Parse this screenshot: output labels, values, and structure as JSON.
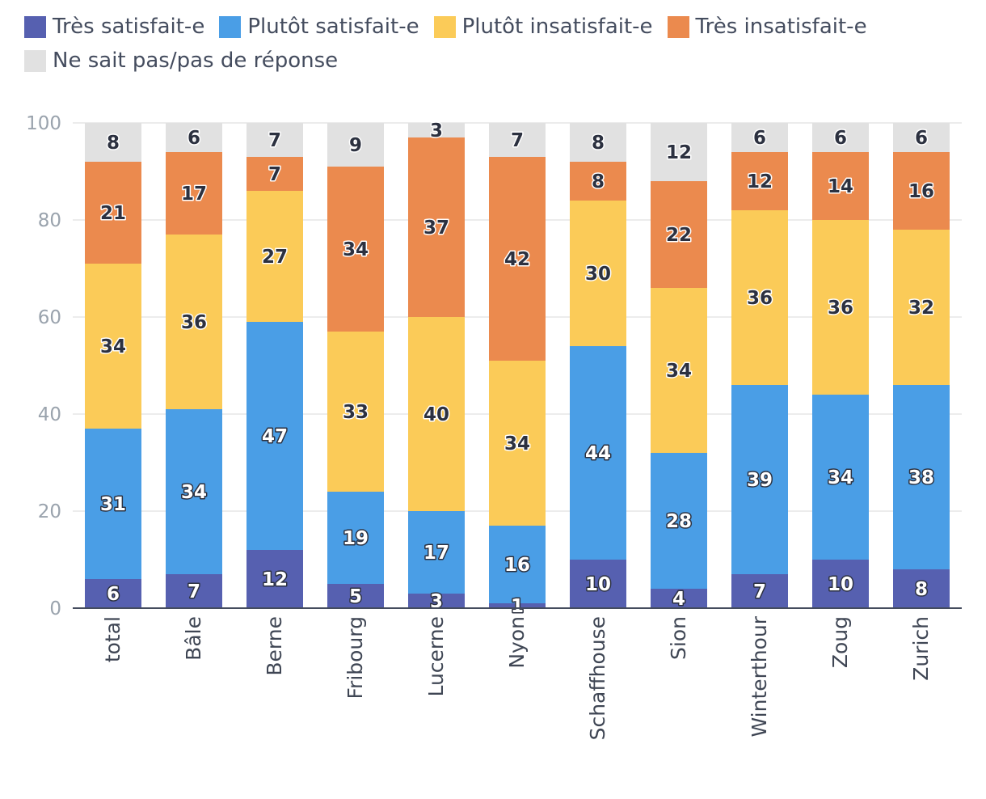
{
  "chart_data": {
    "type": "bar",
    "stacked": true,
    "categories": [
      "total",
      "Bâle",
      "Berne",
      "Fribourg",
      "Lucerne",
      "Nyon",
      "Schaffhouse",
      "Sion",
      "Winterthour",
      "Zoug",
      "Zurich"
    ],
    "series": [
      {
        "name": "Très satisfait-e",
        "color": "#5660b0",
        "values": [
          6,
          7,
          12,
          5,
          3,
          1,
          10,
          4,
          7,
          10,
          8
        ]
      },
      {
        "name": "Plutôt satisfait-e",
        "color": "#4a9ee6",
        "values": [
          31,
          34,
          47,
          19,
          17,
          16,
          44,
          28,
          39,
          34,
          38
        ]
      },
      {
        "name": "Plutôt insatisfait-e",
        "color": "#fbcb58",
        "values": [
          34,
          36,
          27,
          33,
          40,
          34,
          30,
          34,
          36,
          36,
          32
        ]
      },
      {
        "name": "Très insatisfait-e",
        "color": "#eb8a4e",
        "values": [
          21,
          17,
          7,
          34,
          37,
          42,
          8,
          22,
          12,
          14,
          16
        ]
      },
      {
        "name": "Ne sait pas/pas de réponse",
        "color": "#e1e1e1",
        "values": [
          8,
          6,
          7,
          9,
          3,
          7,
          8,
          12,
          6,
          6,
          6
        ]
      }
    ],
    "yticks": [
      0,
      20,
      40,
      60,
      80,
      100
    ],
    "ylim": [
      0,
      100
    ],
    "grid": true,
    "legend_position": "top",
    "title": "",
    "xlabel": "",
    "ylabel": ""
  }
}
